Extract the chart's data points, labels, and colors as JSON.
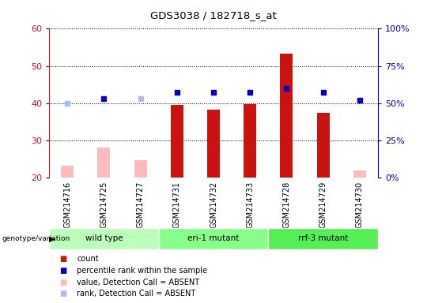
{
  "title": "GDS3038 / 182718_s_at",
  "samples": [
    "GSM214716",
    "GSM214725",
    "GSM214727",
    "GSM214731",
    "GSM214732",
    "GSM214733",
    "GSM214728",
    "GSM214729",
    "GSM214730"
  ],
  "count_values": [
    null,
    null,
    null,
    39.5,
    38.3,
    39.8,
    53.2,
    37.3,
    null
  ],
  "count_absent_values": [
    23.1,
    28.0,
    24.5,
    null,
    null,
    null,
    null,
    null,
    21.8
  ],
  "rank_values_right": [
    null,
    53.0,
    null,
    57.0,
    57.0,
    57.0,
    60.0,
    57.0,
    52.0
  ],
  "rank_absent_values_right": [
    50.0,
    null,
    53.0,
    null,
    null,
    null,
    null,
    null,
    null
  ],
  "ylim_left": [
    20,
    60
  ],
  "ylim_right": [
    0,
    100
  ],
  "yticks_left": [
    20,
    30,
    40,
    50,
    60
  ],
  "ytick_labels_right": [
    "0%",
    "25%",
    "50%",
    "75%",
    "100%"
  ],
  "yticks_right": [
    0,
    25,
    50,
    75,
    100
  ],
  "genotype_groups": [
    {
      "label": "wild type",
      "start": 0,
      "end": 3,
      "color": "#bbffbb"
    },
    {
      "label": "eri-1 mutant",
      "start": 3,
      "end": 6,
      "color": "#88ff88"
    },
    {
      "label": "rrf-3 mutant",
      "start": 6,
      "end": 9,
      "color": "#55ee55"
    }
  ],
  "bar_color_present": "#cc1111",
  "bar_color_absent": "#ffbbbb",
  "rank_color_present": "#0000bb",
  "rank_color_absent": "#aabbff",
  "bar_width": 0.35,
  "sample_bg": "#cccccc",
  "legend_items": [
    {
      "label": "count",
      "color": "#cc1111",
      "marker": "s"
    },
    {
      "label": "percentile rank within the sample",
      "color": "#0000bb",
      "marker": "s"
    },
    {
      "label": "value, Detection Call = ABSENT",
      "color": "#ffbbbb",
      "marker": "s"
    },
    {
      "label": "rank, Detection Call = ABSENT",
      "color": "#aabbff",
      "marker": "s"
    }
  ]
}
